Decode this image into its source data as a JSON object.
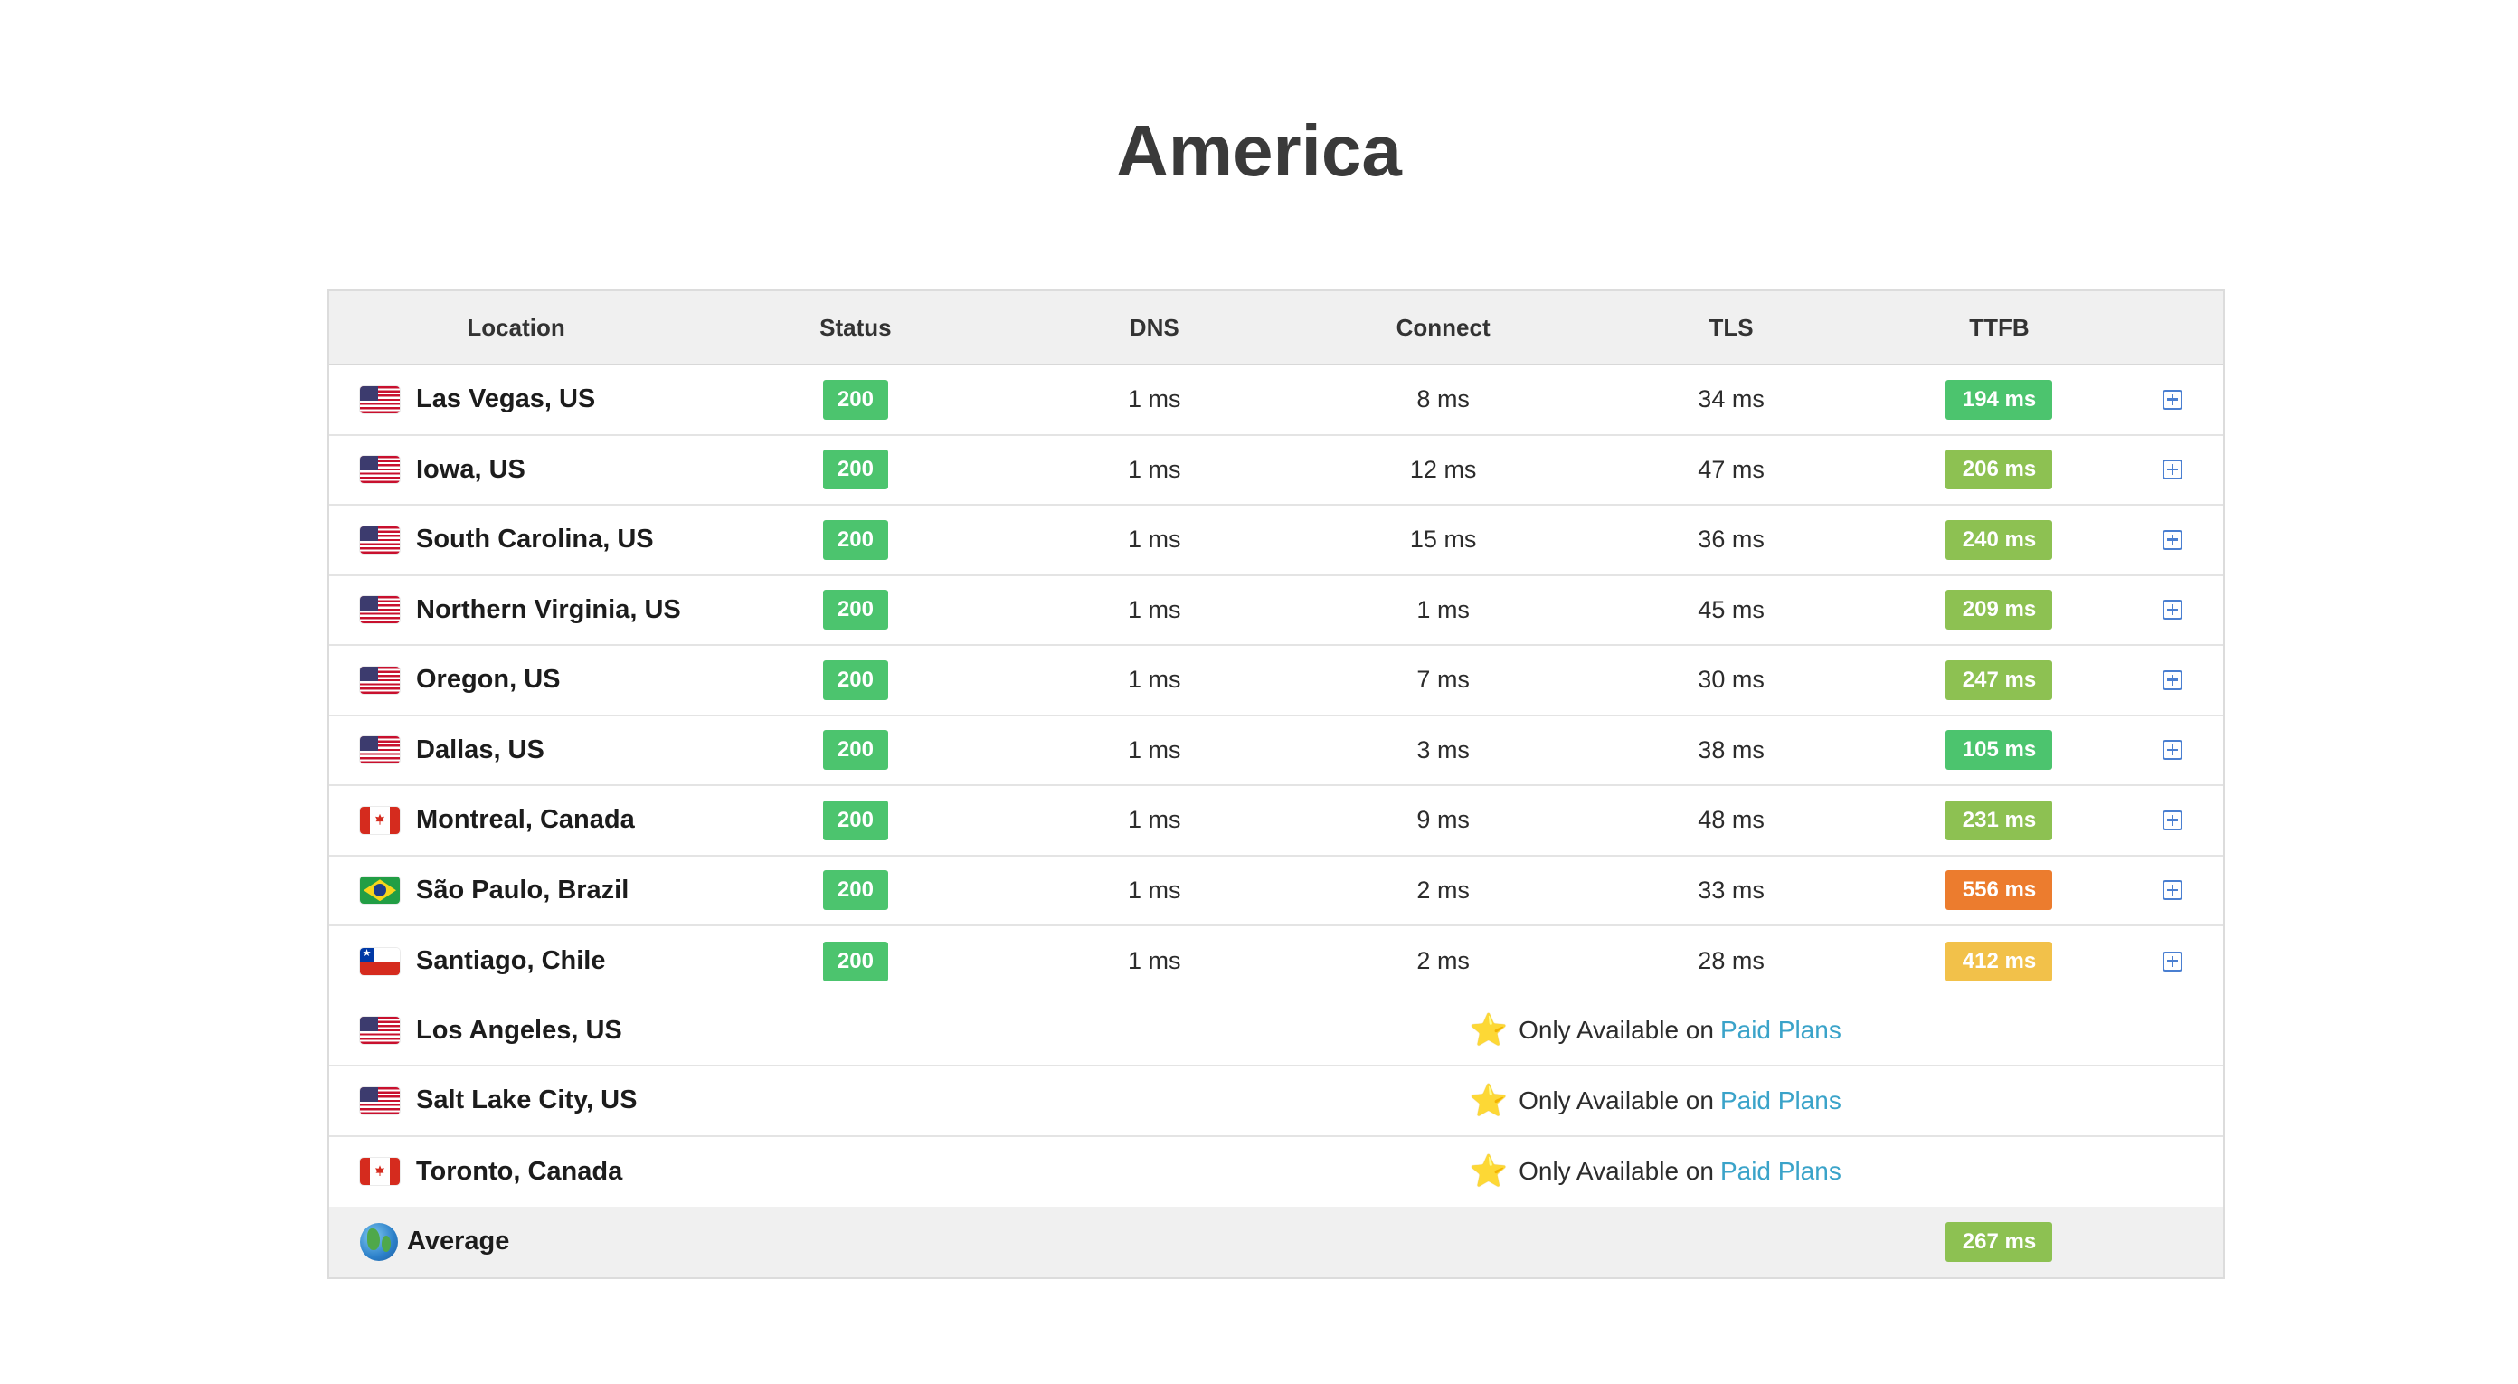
{
  "page": {
    "title": "America"
  },
  "table": {
    "headers": {
      "location": "Location",
      "status": "Status",
      "dns": "DNS",
      "connect": "Connect",
      "tls": "TLS",
      "ttfb": "TTFB"
    },
    "rows": [
      {
        "flag": "us-flag",
        "location": "Las Vegas, US",
        "status": "200",
        "dns": "1 ms",
        "connect": "8 ms",
        "tls": "34 ms",
        "ttfb": "194 ms",
        "ttfb_color": "#4cc46e"
      },
      {
        "flag": "us-flag",
        "location": "Iowa, US",
        "status": "200",
        "dns": "1 ms",
        "connect": "12 ms",
        "tls": "47 ms",
        "ttfb": "206 ms",
        "ttfb_color": "#8dc152"
      },
      {
        "flag": "us-flag",
        "location": "South Carolina, US",
        "status": "200",
        "dns": "1 ms",
        "connect": "15 ms",
        "tls": "36 ms",
        "ttfb": "240 ms",
        "ttfb_color": "#8dc152"
      },
      {
        "flag": "us-flag",
        "location": "Northern Virginia, US",
        "status": "200",
        "dns": "1 ms",
        "connect": "1 ms",
        "tls": "45 ms",
        "ttfb": "209 ms",
        "ttfb_color": "#8dc152"
      },
      {
        "flag": "us-flag",
        "location": "Oregon, US",
        "status": "200",
        "dns": "1 ms",
        "connect": "7 ms",
        "tls": "30 ms",
        "ttfb": "247 ms",
        "ttfb_color": "#8dc152"
      },
      {
        "flag": "us-flag",
        "location": "Dallas, US",
        "status": "200",
        "dns": "1 ms",
        "connect": "3 ms",
        "tls": "38 ms",
        "ttfb": "105 ms",
        "ttfb_color": "#4cc46e"
      },
      {
        "flag": "canada-flag",
        "location": "Montreal, Canada",
        "status": "200",
        "dns": "1 ms",
        "connect": "9 ms",
        "tls": "48 ms",
        "ttfb": "231 ms",
        "ttfb_color": "#8dc152"
      },
      {
        "flag": "brazil-flag",
        "location": "São Paulo, Brazil",
        "status": "200",
        "dns": "1 ms",
        "connect": "2 ms",
        "tls": "33 ms",
        "ttfb": "556 ms",
        "ttfb_color": "#ec7c2e"
      },
      {
        "flag": "chile-flag",
        "location": "Santiago, Chile",
        "status": "200",
        "dns": "1 ms",
        "connect": "2 ms",
        "tls": "28 ms",
        "ttfb": "412 ms",
        "ttfb_color": "#f2c14a"
      }
    ],
    "locked_rows": [
      {
        "flag": "us-flag",
        "location": "Los Angeles, US",
        "text": "Only Available on",
        "link": "Paid Plans"
      },
      {
        "flag": "us-flag",
        "location": "Salt Lake City, US",
        "text": "Only Available on",
        "link": "Paid Plans"
      },
      {
        "flag": "canada-flag",
        "location": "Toronto, Canada",
        "text": "Only Available on",
        "link": "Paid Plans"
      }
    ],
    "average": {
      "icon": "globe-icon",
      "label": "Average",
      "ttfb": "267 ms",
      "ttfb_color": "#8dc152"
    }
  },
  "colors": {
    "status_ok": "#4cc46e",
    "link": "#3aa3c9",
    "expand_icon": "#4a7fd1",
    "header_bg": "#f0f0f0"
  }
}
